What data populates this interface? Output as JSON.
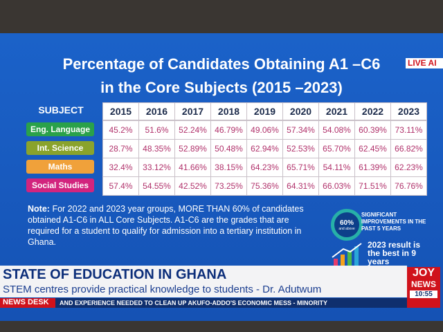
{
  "live": "LIVE AI",
  "title": [
    "Percentage of Candidates Obtaining A1 –C6",
    "in the Core Subjects (2015 –2023)"
  ],
  "table": {
    "header": [
      "SUBJECT",
      "2015",
      "2016",
      "2017",
      "2018",
      "2019",
      "2020",
      "2021",
      "2022",
      "2023"
    ],
    "rows": [
      [
        "Eng. Language",
        "45.2%",
        "51.6%",
        "52.24%",
        "46.79%",
        "49.06%",
        "57.34%",
        "54.08%",
        "60.39%",
        "73.11%"
      ],
      [
        "Int. Science",
        "28.7%",
        "48.35%",
        "52.89%",
        "50.48%",
        "62.94%",
        "52.53%",
        "65.70%",
        "62.45%",
        "66.82%"
      ],
      [
        "Maths",
        "32.4%",
        "33.12%",
        "41.66%",
        "38.15%",
        "64.23%",
        "65.71%",
        "54.11%",
        "61.39%",
        "62.23%"
      ],
      [
        "Social Studies",
        "57.4%",
        "54.55%",
        "42.52%",
        "73.25%",
        "75.36%",
        "64.31%",
        "66.03%",
        "71.51%",
        "76.76%"
      ]
    ]
  },
  "note": {
    "label": "Note:",
    "text": "For 2022 and 2023 year groups, MORE THAN 60% of candidates obtained A1-C6 in ALL Core Subjects. A1-C6 are the grades that are required for a student to qualify for admission into a tertiary institution in Ghana."
  },
  "badge": {
    "value": "60%",
    "sub": "and above",
    "text": "SIGNIFICANT IMPROVEMENTS IN THE PAST 5 YEARS"
  },
  "best": "2023 result is the best in 9 years",
  "lower_third": {
    "headline": "STATE OF EDUCATION IN GHANA",
    "subline": "STEM centres provide practical knowledge to students - Dr. Adutwum",
    "desk": "NEWS DESK",
    "ticker": "AND EXPERIENCE NEEDED TO CLEAN UP AKUFO-ADDO'S ECONOMIC MESS - MINORITY",
    "brand": [
      "JOY",
      "NEWS"
    ],
    "time": "10:55"
  }
}
